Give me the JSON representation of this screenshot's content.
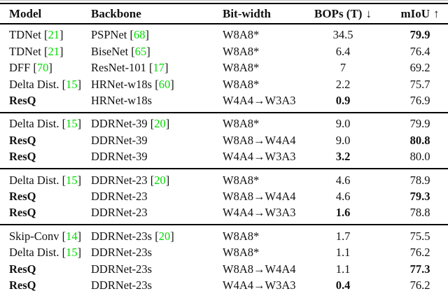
{
  "table": {
    "headers": [
      {
        "label": "Model",
        "align": "left"
      },
      {
        "label": "Backbone",
        "align": "left"
      },
      {
        "label": "Bit-width",
        "align": "left"
      },
      {
        "label": "BOPs (T)",
        "arrow": "↓",
        "align": "center"
      },
      {
        "label": "mIoU",
        "arrow": "↑",
        "align": "center"
      }
    ],
    "sections": [
      {
        "rows": [
          {
            "model": "TDNet",
            "model_cite": "21",
            "model_bold": false,
            "backbone": "PSPNet",
            "backbone_cite": "68",
            "bitwidth": "W8A8*",
            "bops": "34.5",
            "bops_bold": false,
            "miou": "79.9",
            "miou_bold": true
          },
          {
            "model": "TDNet",
            "model_cite": "21",
            "model_bold": false,
            "backbone": "BiseNet",
            "backbone_cite": "65",
            "bitwidth": "W8A8*",
            "bops": "6.4",
            "bops_bold": false,
            "miou": "76.4",
            "miou_bold": false
          },
          {
            "model": "DFF",
            "model_cite": "70",
            "model_bold": false,
            "backbone": "ResNet-101",
            "backbone_cite": "17",
            "bitwidth": "W8A8*",
            "bops": "7",
            "bops_bold": false,
            "miou": "69.2",
            "miou_bold": false
          },
          {
            "model": "Delta Dist.",
            "model_cite": "15",
            "model_bold": false,
            "backbone": "HRNet-w18s",
            "backbone_cite": "60",
            "bitwidth": "W8A8*",
            "bops": "2.2",
            "bops_bold": false,
            "miou": "75.7",
            "miou_bold": false
          },
          {
            "model": "ResQ",
            "model_cite": "",
            "model_bold": true,
            "backbone": "HRNet-w18s",
            "backbone_cite": "",
            "bitwidth": "W4A4→W3A3",
            "bops": "0.9",
            "bops_bold": true,
            "miou": "76.9",
            "miou_bold": false
          }
        ]
      },
      {
        "rows": [
          {
            "model": "Delta Dist.",
            "model_cite": "15",
            "model_bold": false,
            "backbone": "DDRNet-39",
            "backbone_cite": "20",
            "bitwidth": "W8A8*",
            "bops": "9.0",
            "bops_bold": false,
            "miou": "79.9",
            "miou_bold": false
          },
          {
            "model": "ResQ",
            "model_cite": "",
            "model_bold": true,
            "backbone": "DDRNet-39",
            "backbone_cite": "",
            "bitwidth": "W8A8→W4A4",
            "bops": "9.0",
            "bops_bold": false,
            "miou": "80.8",
            "miou_bold": true
          },
          {
            "model": "ResQ",
            "model_cite": "",
            "model_bold": true,
            "backbone": "DDRNet-39",
            "backbone_cite": "",
            "bitwidth": "W4A4→W3A3",
            "bops": "3.2",
            "bops_bold": true,
            "miou": "80.0",
            "miou_bold": false
          }
        ]
      },
      {
        "rows": [
          {
            "model": "Delta Dist.",
            "model_cite": "15",
            "model_bold": false,
            "backbone": "DDRNet-23",
            "backbone_cite": "20",
            "bitwidth": "W8A8*",
            "bops": "4.6",
            "bops_bold": false,
            "miou": "78.9",
            "miou_bold": false
          },
          {
            "model": "ResQ",
            "model_cite": "",
            "model_bold": true,
            "backbone": "DDRNet-23",
            "backbone_cite": "",
            "bitwidth": "W8A8→W4A4",
            "bops": "4.6",
            "bops_bold": false,
            "miou": "79.3",
            "miou_bold": true
          },
          {
            "model": "ResQ",
            "model_cite": "",
            "model_bold": true,
            "backbone": "DDRNet-23",
            "backbone_cite": "",
            "bitwidth": "W4A4→W3A3",
            "bops": "1.6",
            "bops_bold": true,
            "miou": "78.8",
            "miou_bold": false
          }
        ]
      },
      {
        "rows": [
          {
            "model": "Skip-Conv",
            "model_cite": "14",
            "model_bold": false,
            "backbone": "DDRNet-23s",
            "backbone_cite": "20",
            "bitwidth": "W8A8*",
            "bops": "1.7",
            "bops_bold": false,
            "miou": "75.5",
            "miou_bold": false
          },
          {
            "model": "Delta Dist.",
            "model_cite": "15",
            "model_bold": false,
            "backbone": "DDRNet-23s",
            "backbone_cite": "",
            "bitwidth": "W8A8*",
            "bops": "1.1",
            "bops_bold": false,
            "miou": "76.2",
            "miou_bold": false
          },
          {
            "model": "ResQ",
            "model_cite": "",
            "model_bold": true,
            "backbone": "DDRNet-23s",
            "backbone_cite": "",
            "bitwidth": "W8A8→W4A4",
            "bops": "1.1",
            "bops_bold": false,
            "miou": "77.3",
            "miou_bold": true
          },
          {
            "model": "ResQ",
            "model_cite": "",
            "model_bold": true,
            "backbone": "DDRNet-23s",
            "backbone_cite": "",
            "bitwidth": "W4A4→W3A3",
            "bops": "0.4",
            "bops_bold": true,
            "miou": "76.2",
            "miou_bold": false
          }
        ]
      }
    ]
  },
  "colors": {
    "citation_green": "#00dc00",
    "text": "#111111",
    "rule": "#000000",
    "background": "#ffffff"
  }
}
